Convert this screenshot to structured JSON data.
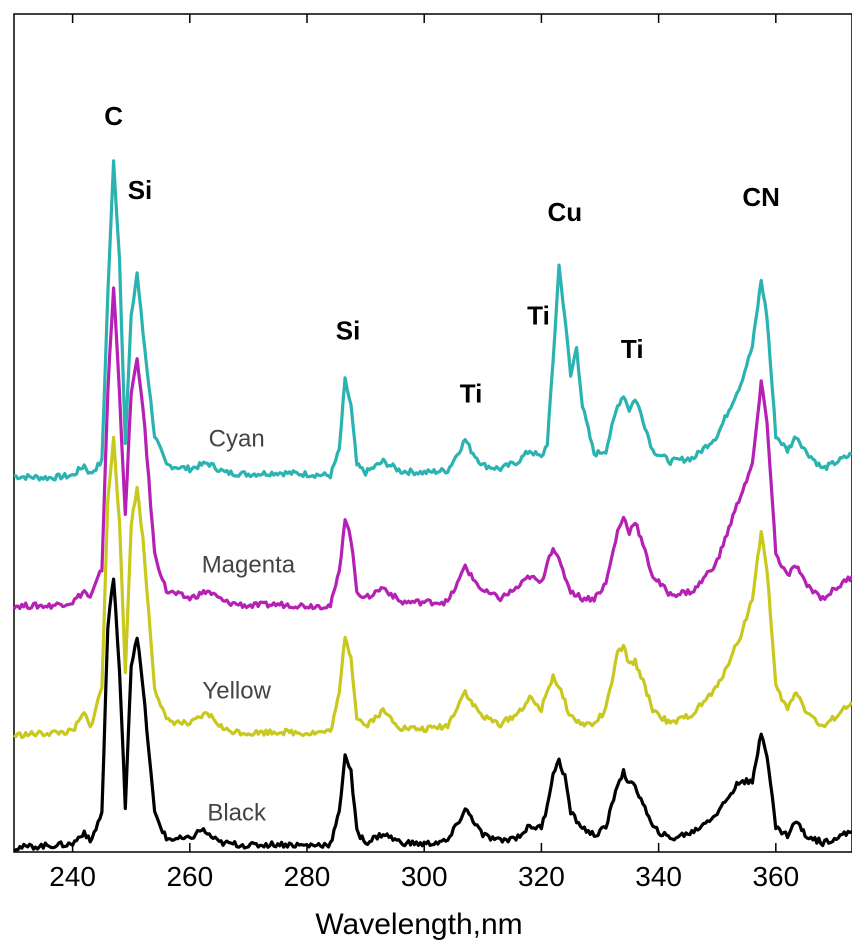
{
  "chart_data": {
    "type": "line",
    "xlabel": "Wavelength,nm",
    "ylabel": "",
    "xlim": [
      230,
      373
    ],
    "ylim": [
      0,
      100
    ],
    "x_ticks": [
      240,
      260,
      280,
      300,
      320,
      340,
      360
    ],
    "x_tick_labels": [
      "240",
      "260",
      "280",
      "300",
      "320",
      "340",
      "360"
    ],
    "grid": false,
    "legend": "none (series labelled inline)",
    "series": [
      {
        "name": "Cyan",
        "color": "#2ab3b0",
        "points": [
          [
            230,
            50.5
          ],
          [
            236,
            50.3
          ],
          [
            240,
            50.6
          ],
          [
            242,
            52.0
          ],
          [
            243,
            50.8
          ],
          [
            245,
            52.5
          ],
          [
            246,
            75
          ],
          [
            247,
            93
          ],
          [
            248,
            80
          ],
          [
            249,
            55
          ],
          [
            250,
            72
          ],
          [
            251,
            78
          ],
          [
            252,
            70
          ],
          [
            254,
            56
          ],
          [
            256,
            52.0
          ],
          [
            260,
            51.5
          ],
          [
            263,
            52.3
          ],
          [
            266,
            51.0
          ],
          [
            270,
            50.8
          ],
          [
            275,
            51.0
          ],
          [
            280,
            50.8
          ],
          [
            284,
            50.6
          ],
          [
            285.5,
            54
          ],
          [
            286.5,
            63.5
          ],
          [
            287.5,
            60
          ],
          [
            288.5,
            52
          ],
          [
            290,
            51.0
          ],
          [
            293,
            52.5
          ],
          [
            296,
            51.2
          ],
          [
            300,
            51.0
          ],
          [
            304,
            51.3
          ],
          [
            306,
            54
          ],
          [
            307,
            55.5
          ],
          [
            308,
            54
          ],
          [
            310,
            52
          ],
          [
            313,
            51.5
          ],
          [
            316,
            52.5
          ],
          [
            318,
            54.0
          ],
          [
            320,
            53
          ],
          [
            321,
            55
          ],
          [
            322,
            66
          ],
          [
            323,
            79
          ],
          [
            324,
            72
          ],
          [
            325,
            64
          ],
          [
            326,
            68
          ],
          [
            327,
            60
          ],
          [
            329,
            53.5
          ],
          [
            331,
            54
          ],
          [
            333,
            60
          ],
          [
            334,
            61.5
          ],
          [
            335,
            59.5
          ],
          [
            336,
            61
          ],
          [
            337,
            59
          ],
          [
            339,
            54
          ],
          [
            342,
            52.5
          ],
          [
            346,
            53
          ],
          [
            350,
            56
          ],
          [
            354,
            63
          ],
          [
            356,
            68
          ],
          [
            357.5,
            77
          ],
          [
            358.5,
            72
          ],
          [
            360,
            56
          ],
          [
            362,
            54
          ],
          [
            363.5,
            56
          ],
          [
            365,
            54
          ],
          [
            368,
            51.5
          ],
          [
            373,
            53.5
          ]
        ]
      },
      {
        "name": "Magenta",
        "color": "#b521b5",
        "points": [
          [
            230,
            33
          ],
          [
            236,
            33
          ],
          [
            240,
            33.5
          ],
          [
            242,
            35
          ],
          [
            243,
            34
          ],
          [
            245,
            38
          ],
          [
            246,
            62
          ],
          [
            247,
            76
          ],
          [
            248,
            62
          ],
          [
            249,
            45
          ],
          [
            250,
            62
          ],
          [
            251,
            66
          ],
          [
            252,
            60
          ],
          [
            254,
            40
          ],
          [
            256,
            35
          ],
          [
            260,
            34
          ],
          [
            263,
            35
          ],
          [
            266,
            33.5
          ],
          [
            270,
            33
          ],
          [
            275,
            33.2
          ],
          [
            280,
            33
          ],
          [
            284,
            33
          ],
          [
            285.5,
            37.5
          ],
          [
            286.5,
            45
          ],
          [
            287.5,
            42
          ],
          [
            288.5,
            35
          ],
          [
            290,
            34
          ],
          [
            293,
            35.5
          ],
          [
            296,
            33.5
          ],
          [
            300,
            33.5
          ],
          [
            304,
            33.5
          ],
          [
            306,
            36.5
          ],
          [
            307,
            38.5
          ],
          [
            308,
            37
          ],
          [
            310,
            35
          ],
          [
            313,
            34
          ],
          [
            316,
            35.5
          ],
          [
            318,
            37
          ],
          [
            320,
            36
          ],
          [
            321,
            39
          ],
          [
            322,
            41
          ],
          [
            323,
            39
          ],
          [
            325,
            35
          ],
          [
            327,
            34
          ],
          [
            329,
            34
          ],
          [
            331,
            36
          ],
          [
            333,
            43
          ],
          [
            334,
            45
          ],
          [
            335,
            43
          ],
          [
            336,
            44.5
          ],
          [
            337,
            42
          ],
          [
            339,
            37
          ],
          [
            342,
            34.5
          ],
          [
            346,
            35
          ],
          [
            350,
            39
          ],
          [
            354,
            48
          ],
          [
            356,
            52
          ],
          [
            357.5,
            63
          ],
          [
            358.5,
            58
          ],
          [
            360,
            40
          ],
          [
            362,
            37
          ],
          [
            363.5,
            38.5
          ],
          [
            365,
            36
          ],
          [
            368,
            34
          ],
          [
            373,
            37
          ]
        ]
      },
      {
        "name": "Yellow",
        "color": "#c8c81e",
        "points": [
          [
            230,
            15.5
          ],
          [
            236,
            15.8
          ],
          [
            240,
            16
          ],
          [
            242,
            18.5
          ],
          [
            243,
            16.5
          ],
          [
            245,
            22
          ],
          [
            246,
            47
          ],
          [
            247,
            56
          ],
          [
            248,
            44
          ],
          [
            249,
            24
          ],
          [
            250,
            44
          ],
          [
            251,
            49
          ],
          [
            252,
            42
          ],
          [
            254,
            22
          ],
          [
            256,
            17.5
          ],
          [
            260,
            17
          ],
          [
            263,
            18.5
          ],
          [
            266,
            16.2
          ],
          [
            270,
            15.8
          ],
          [
            275,
            16
          ],
          [
            280,
            15.8
          ],
          [
            284,
            16
          ],
          [
            285.5,
            21
          ],
          [
            286.5,
            29
          ],
          [
            287.5,
            26
          ],
          [
            288.5,
            18
          ],
          [
            290,
            16.8
          ],
          [
            293,
            18.8
          ],
          [
            296,
            16.5
          ],
          [
            300,
            16.3
          ],
          [
            304,
            16.8
          ],
          [
            306,
            20
          ],
          [
            307,
            21.5
          ],
          [
            308,
            20
          ],
          [
            310,
            18
          ],
          [
            313,
            17
          ],
          [
            316,
            18.5
          ],
          [
            318,
            20.5
          ],
          [
            320,
            19
          ],
          [
            321,
            21.5
          ],
          [
            322,
            23.5
          ],
          [
            323,
            22
          ],
          [
            325,
            18
          ],
          [
            327,
            17
          ],
          [
            329,
            17
          ],
          [
            331,
            19
          ],
          [
            333,
            26.5
          ],
          [
            334,
            27.5
          ],
          [
            335,
            25
          ],
          [
            336,
            25.5
          ],
          [
            337,
            23.5
          ],
          [
            339,
            19
          ],
          [
            342,
            17
          ],
          [
            346,
            18.5
          ],
          [
            350,
            22
          ],
          [
            354,
            29
          ],
          [
            356,
            34
          ],
          [
            357.5,
            43
          ],
          [
            358.5,
            38
          ],
          [
            360,
            22
          ],
          [
            362,
            19
          ],
          [
            363.5,
            21.5
          ],
          [
            365,
            19
          ],
          [
            368,
            16.5
          ],
          [
            373,
            20
          ]
        ]
      },
      {
        "name": "Black",
        "color": "#000000",
        "points": [
          [
            230,
            0.3
          ],
          [
            236,
            0.6
          ],
          [
            240,
            0.8
          ],
          [
            242,
            2.5
          ],
          [
            243,
            1
          ],
          [
            245,
            5
          ],
          [
            246,
            30
          ],
          [
            247,
            37
          ],
          [
            248,
            24
          ],
          [
            249,
            6
          ],
          [
            250,
            25
          ],
          [
            251,
            29
          ],
          [
            252,
            22
          ],
          [
            254,
            5
          ],
          [
            256,
            1.5
          ],
          [
            260,
            1.5
          ],
          [
            262,
            2.8
          ],
          [
            265,
            1
          ],
          [
            270,
            0.6
          ],
          [
            275,
            0.8
          ],
          [
            280,
            0.6
          ],
          [
            284,
            0.8
          ],
          [
            285.5,
            5
          ],
          [
            286.5,
            13
          ],
          [
            287.5,
            10.5
          ],
          [
            288.5,
            2.5
          ],
          [
            290,
            1
          ],
          [
            293,
            2.2
          ],
          [
            296,
            1
          ],
          [
            300,
            0.8
          ],
          [
            304,
            1.2
          ],
          [
            306,
            4
          ],
          [
            307,
            5.5
          ],
          [
            308,
            4.5
          ],
          [
            310,
            2
          ],
          [
            313,
            1.2
          ],
          [
            316,
            1.8
          ],
          [
            318,
            3.2
          ],
          [
            320,
            3
          ],
          [
            321,
            6
          ],
          [
            322,
            10.5
          ],
          [
            323,
            12
          ],
          [
            324,
            10
          ],
          [
            325,
            5
          ],
          [
            326,
            4
          ],
          [
            327,
            3
          ],
          [
            329,
            2
          ],
          [
            331,
            3
          ],
          [
            333,
            9
          ],
          [
            334,
            10.5
          ],
          [
            335,
            9
          ],
          [
            336,
            8.5
          ],
          [
            337,
            7
          ],
          [
            339,
            3
          ],
          [
            342,
            1.5
          ],
          [
            346,
            2.5
          ],
          [
            350,
            5
          ],
          [
            354,
            9.5
          ],
          [
            356,
            9
          ],
          [
            357.5,
            16
          ],
          [
            358.5,
            13
          ],
          [
            360,
            3
          ],
          [
            362,
            2
          ],
          [
            363.5,
            4
          ],
          [
            365,
            2
          ],
          [
            368,
            1
          ],
          [
            373,
            2.5
          ]
        ]
      }
    ],
    "annotations": [
      {
        "text": "C",
        "x": 247,
        "y": 98
      },
      {
        "text": "Si",
        "x": 251.5,
        "y": 88
      },
      {
        "text": "Si",
        "x": 287,
        "y": 69
      },
      {
        "text": "Ti",
        "x": 308,
        "y": 60.5
      },
      {
        "text": "Ti",
        "x": 319.5,
        "y": 71
      },
      {
        "text": "Cu",
        "x": 324,
        "y": 85
      },
      {
        "text": "Ti",
        "x": 335.5,
        "y": 66.5
      },
      {
        "text": "CN",
        "x": 357.5,
        "y": 87
      }
    ],
    "series_labels": [
      {
        "text": "Cyan",
        "x": 268,
        "y": 54.5
      },
      {
        "text": "Magenta",
        "x": 270,
        "y": 37.5
      },
      {
        "text": "Yellow",
        "x": 268,
        "y": 20.5
      },
      {
        "text": "Black",
        "x": 268,
        "y": 4
      }
    ]
  }
}
